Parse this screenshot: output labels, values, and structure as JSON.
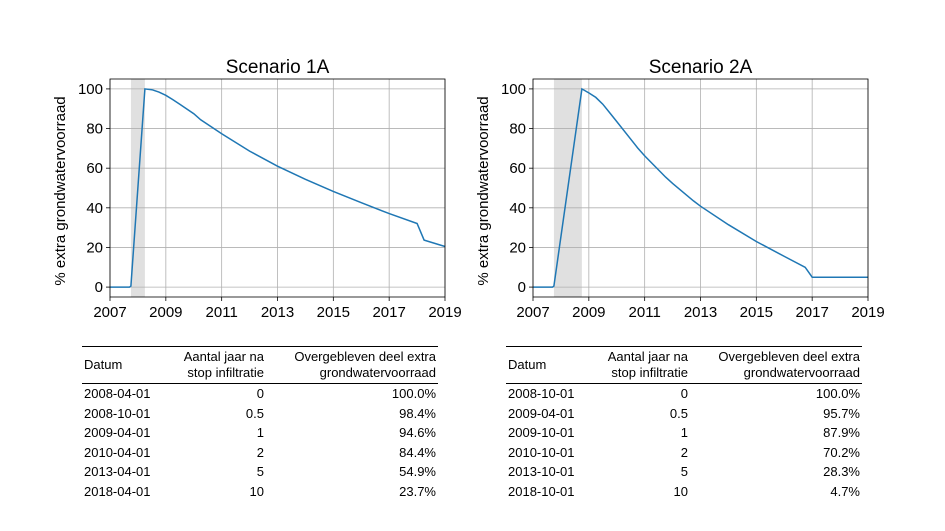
{
  "chart_data": [
    {
      "type": "line",
      "title": "Scenario 1A",
      "ylabel": "% extra grondwatervoorraad",
      "xlim": [
        2007,
        2019
      ],
      "ylim": [
        -5,
        105
      ],
      "x_ticks": [
        "2007",
        "2009",
        "2011",
        "2013",
        "2015",
        "2017",
        "2019"
      ],
      "y_ticks": [
        "0",
        "20",
        "40",
        "60",
        "80",
        "100"
      ],
      "grid": true,
      "shaded_period": [
        2007.75,
        2008.25
      ],
      "line_color": "#1f77b4",
      "series": [
        {
          "x": [
            2007.0,
            2007.7,
            2007.75,
            2008.25,
            2008.5,
            2008.75,
            2009.0,
            2009.25,
            2009.5,
            2010.0,
            2010.25,
            2011.0,
            2012.0,
            2013.0,
            2014.0,
            2015.0,
            2016.0,
            2017.0,
            2018.0,
            2018.25,
            2019.0
          ],
          "values": [
            0,
            0,
            0.5,
            100,
            99.6,
            98.4,
            96.8,
            94.6,
            92.3,
            87.5,
            84.4,
            77.4,
            68.6,
            61.0,
            54.4,
            48.3,
            42.6,
            37.1,
            32.1,
            23.7,
            20.5
          ]
        }
      ]
    },
    {
      "type": "line",
      "title": "Scenario 2A",
      "ylabel": "% extra grondwatervoorraad",
      "xlim": [
        2007,
        2019
      ],
      "ylim": [
        -5,
        105
      ],
      "x_ticks": [
        "2007",
        "2009",
        "2011",
        "2013",
        "2015",
        "2017",
        "2019"
      ],
      "y_ticks": [
        "0",
        "20",
        "40",
        "60",
        "80",
        "100"
      ],
      "grid": true,
      "shaded_period": [
        2007.75,
        2008.75
      ],
      "line_color": "#1f77b4",
      "series": [
        {
          "x": [
            2007.0,
            2007.7,
            2007.75,
            2008.75,
            2009.0,
            2009.25,
            2009.5,
            2009.75,
            2010.0,
            2010.75,
            2011.0,
            2011.75,
            2012.0,
            2012.75,
            2013.0,
            2014.0,
            2015.0,
            2016.0,
            2016.75,
            2017.0,
            2019.0
          ],
          "values": [
            0,
            0,
            0.5,
            100,
            98.0,
            95.7,
            92.3,
            87.9,
            83.5,
            70.2,
            66.2,
            55.5,
            52.3,
            43.5,
            40.8,
            31.5,
            23.0,
            15.5,
            10.0,
            5.0,
            5.0
          ]
        }
      ]
    }
  ],
  "tables": [
    {
      "headers": [
        "Datum",
        "Aantal jaar na stop infiltratie",
        "Overgebleven deel extra grondwatervoorraad"
      ],
      "rows": [
        [
          "2008-04-01",
          "0",
          "100.0%"
        ],
        [
          "2008-10-01",
          "0.5",
          "98.4%"
        ],
        [
          "2009-04-01",
          "1",
          "94.6%"
        ],
        [
          "2010-04-01",
          "2",
          "84.4%"
        ],
        [
          "2013-04-01",
          "5",
          "54.9%"
        ],
        [
          "2018-04-01",
          "10",
          "23.7%"
        ]
      ]
    },
    {
      "headers": [
        "Datum",
        "Aantal jaar na stop infiltratie",
        "Overgebleven deel extra grondwatervoorraad"
      ],
      "rows": [
        [
          "2008-10-01",
          "0",
          "100.0%"
        ],
        [
          "2009-04-01",
          "0.5",
          "95.7%"
        ],
        [
          "2009-10-01",
          "1",
          "87.9%"
        ],
        [
          "2010-10-01",
          "2",
          "70.2%"
        ],
        [
          "2013-10-01",
          "5",
          "28.3%"
        ],
        [
          "2018-10-01",
          "10",
          "4.7%"
        ]
      ]
    }
  ]
}
